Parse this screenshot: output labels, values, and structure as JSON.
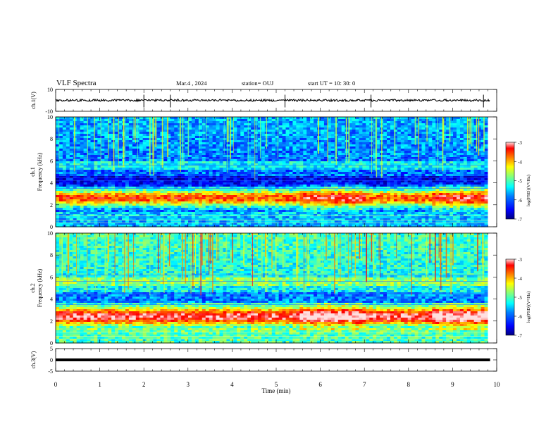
{
  "header": {
    "title": "VLF Spectra",
    "date": "Mar.4 , 2024",
    "station": "station= OUJ",
    "start_time": "start UT = 10: 30: 0"
  },
  "chart_data": [
    {
      "type": "line",
      "name": "ch1-waveform",
      "ylabel": "ch.1(V)",
      "ytick_labels": [
        "10",
        "-10"
      ],
      "ylim": [
        -10,
        10
      ],
      "xlim": [
        0,
        10
      ],
      "baseline": 0,
      "spikes_min": [
        2.0,
        2.6,
        5.2,
        7.15,
        9.7
      ]
    },
    {
      "type": "heatmap",
      "name": "ch1-spectrogram",
      "ylabel": "ch.1\nFrequency (kHz)",
      "ylim": [
        0,
        10
      ],
      "ytick_labels": [
        "0",
        "2",
        "4",
        "6",
        "8",
        "10"
      ],
      "xlim": [
        0,
        10
      ],
      "data_end_min": 9.8,
      "band_center_khz": 2.6,
      "colorbar": {
        "label": "log(PSD)(V²/Hz)",
        "range": [
          -7,
          -3
        ],
        "tick_labels": [
          "-3",
          "-4",
          "-5",
          "-6",
          "-7"
        ]
      }
    },
    {
      "type": "heatmap",
      "name": "ch2-spectrogram",
      "ylabel": "ch.2\nFrequency (kHz)",
      "ylim": [
        0,
        10
      ],
      "ytick_labels": [
        "0",
        "2",
        "4",
        "6",
        "8",
        "10"
      ],
      "xlim": [
        0,
        10
      ],
      "data_end_min": 9.8,
      "band_center_khz": 2.4,
      "colorbar": {
        "label": "log(PSD)(V²/Hz)",
        "range": [
          -7,
          -3
        ],
        "tick_labels": [
          "-3",
          "-4",
          "-5",
          "-6",
          "-7"
        ]
      }
    },
    {
      "type": "line",
      "name": "ch3-waveform",
      "ylabel": "ch.3(V)",
      "ytick_labels": [
        "5",
        "0",
        "-5"
      ],
      "ylim": [
        -5,
        5
      ],
      "xlim": [
        0,
        10
      ],
      "baseline": 0
    }
  ],
  "xaxis": {
    "label": "Time (min)",
    "tick_labels": [
      "0",
      "1",
      "2",
      "3",
      "4",
      "5",
      "6",
      "7",
      "8",
      "9",
      "10"
    ],
    "range": [
      0,
      10
    ]
  },
  "colors": {
    "colormap": [
      "#000080",
      "#0000ff",
      "#0080ff",
      "#00ffff",
      "#80ff80",
      "#ffff00",
      "#ff8000",
      "#ff0000",
      "#ffe0e0"
    ]
  }
}
